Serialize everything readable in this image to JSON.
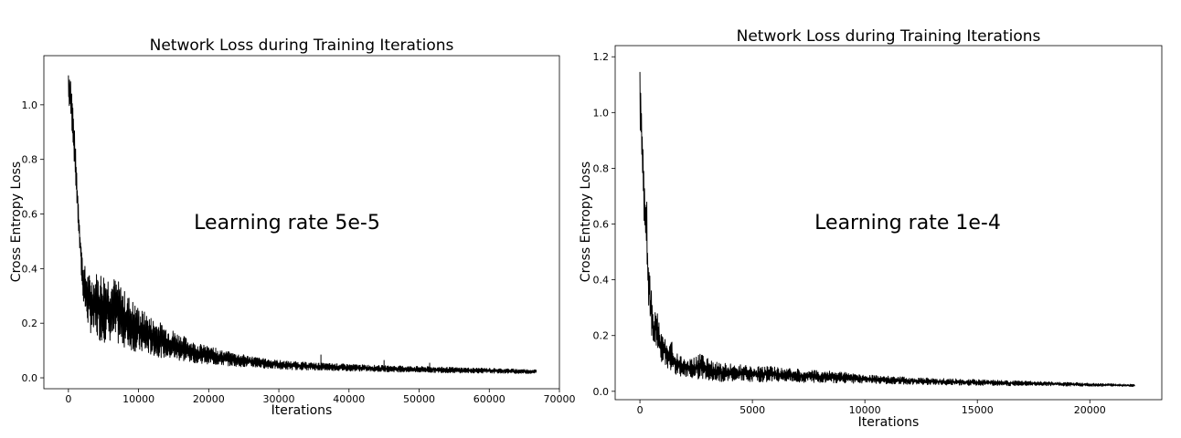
{
  "chart_data": [
    {
      "type": "line",
      "title": "Network Loss during Training Iterations",
      "xlabel": "Iterations",
      "ylabel": "Cross Entropy Loss",
      "annotation": "Learning rate 5e-5",
      "xlim": [
        -3500,
        70000
      ],
      "ylim": [
        -0.04,
        1.18
      ],
      "xticks": [
        0,
        10000,
        20000,
        30000,
        40000,
        50000,
        60000,
        70000
      ],
      "yticks": [
        0.0,
        0.2,
        0.4,
        0.6,
        0.8,
        1.0
      ],
      "series": [
        {
          "color": "#000000",
          "x": [
            0,
            300,
            600,
            1000,
            1500,
            2000,
            2500,
            3000,
            3500,
            4000,
            5000,
            6000,
            7000,
            8000,
            9000,
            10000,
            12000,
            14000,
            16000,
            18000,
            20000,
            22000,
            25000,
            28000,
            31000,
            35000,
            40000,
            45000,
            50000,
            55000,
            60000,
            64000,
            66700
          ],
          "upper": [
            1.14,
            1.12,
            1.02,
            0.85,
            0.62,
            0.44,
            0.4,
            0.38,
            0.38,
            0.39,
            0.39,
            0.38,
            0.36,
            0.32,
            0.29,
            0.26,
            0.22,
            0.19,
            0.16,
            0.13,
            0.115,
            0.1,
            0.085,
            0.07,
            0.062,
            0.055,
            0.05,
            0.045,
            0.042,
            0.038,
            0.035,
            0.032,
            0.03
          ],
          "lower": [
            1.0,
            0.95,
            0.88,
            0.72,
            0.5,
            0.3,
            0.22,
            0.17,
            0.15,
            0.14,
            0.13,
            0.13,
            0.12,
            0.11,
            0.1,
            0.09,
            0.08,
            0.07,
            0.06,
            0.055,
            0.05,
            0.045,
            0.04,
            0.035,
            0.03,
            0.028,
            0.025,
            0.022,
            0.02,
            0.018,
            0.017,
            0.016,
            0.015
          ],
          "spikes": [
            [
              21000,
              0.11
            ],
            [
              36000,
              0.085
            ],
            [
              45000,
              0.065
            ],
            [
              51500,
              0.055
            ]
          ]
        }
      ]
    },
    {
      "type": "line",
      "title": "Network Loss during Training Iterations",
      "xlabel": "Iterations",
      "ylabel": "Cross Entropy Loss",
      "annotation": "Learning rate 1e-4",
      "xlim": [
        -1100,
        23200
      ],
      "ylim": [
        -0.03,
        1.24
      ],
      "xticks": [
        0,
        5000,
        10000,
        15000,
        20000
      ],
      "yticks": [
        0.0,
        0.2,
        0.4,
        0.6,
        0.8,
        1.0,
        1.2
      ],
      "series": [
        {
          "color": "#000000",
          "x": [
            0,
            50,
            100,
            150,
            200,
            250,
            300,
            350,
            400,
            450,
            500,
            550,
            600,
            650,
            700,
            800,
            900,
            1000,
            1100,
            1200,
            1400,
            1600,
            1800,
            2000,
            2400,
            2800,
            3200,
            3600,
            4000,
            5000,
            6000,
            7000,
            8000,
            9000,
            10000,
            12000,
            14000,
            16000,
            18000,
            20000,
            22000
          ],
          "upper": [
            1.18,
            1.05,
            0.95,
            0.92,
            0.78,
            0.74,
            0.7,
            0.52,
            0.5,
            0.4,
            0.37,
            0.33,
            0.29,
            0.27,
            0.35,
            0.28,
            0.22,
            0.2,
            0.2,
            0.2,
            0.18,
            0.15,
            0.13,
            0.12,
            0.12,
            0.14,
            0.11,
            0.1,
            0.1,
            0.09,
            0.09,
            0.08,
            0.075,
            0.07,
            0.06,
            0.05,
            0.045,
            0.04,
            0.035,
            0.03,
            0.025
          ],
          "lower": [
            0.9,
            0.85,
            0.8,
            0.6,
            0.58,
            0.5,
            0.45,
            0.35,
            0.28,
            0.26,
            0.2,
            0.18,
            0.16,
            0.15,
            0.16,
            0.12,
            0.11,
            0.1,
            0.09,
            0.08,
            0.07,
            0.06,
            0.055,
            0.05,
            0.045,
            0.04,
            0.038,
            0.035,
            0.035,
            0.035,
            0.033,
            0.032,
            0.03,
            0.03,
            0.028,
            0.025,
            0.022,
            0.02,
            0.02,
            0.018,
            0.017
          ],
          "spikes": []
        }
      ]
    }
  ]
}
